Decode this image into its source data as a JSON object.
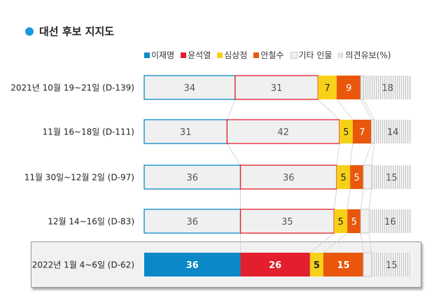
{
  "title": "대선 후보 지지도",
  "legend": {
    "items": [
      "이재명",
      "윤석열",
      "심상정",
      "안철수",
      "기타 인물",
      "의견유보"
    ],
    "unit": "(%)"
  },
  "colors": {
    "이재명": "#0a88c8",
    "윤석열": "#e31e2d",
    "심상정": "#f7d117",
    "안철수": "#e8570c",
    "기타 인물": "#f0f0f0",
    "의견유보": "#cfcfcf"
  },
  "chart_data": {
    "type": "bar",
    "orientation": "horizontal-stacked",
    "categories": [
      "2021년 10월 19~21일 (D-139)",
      "11월 16~18일 (D-111)",
      "11월 30일~12월 2일 (D-97)",
      "12월 14~16일 (D-83)",
      "2022년 1월 4~6일 (D-62)"
    ],
    "series": [
      {
        "name": "이재명",
        "values": [
          34,
          31,
          36,
          36,
          36
        ]
      },
      {
        "name": "윤석열",
        "values": [
          31,
          42,
          36,
          35,
          26
        ]
      },
      {
        "name": "심상정",
        "values": [
          7,
          5,
          5,
          5,
          5
        ]
      },
      {
        "name": "안철수",
        "values": [
          9,
          7,
          5,
          5,
          15
        ]
      },
      {
        "name": "기타 인물",
        "values": [
          1,
          1,
          3,
          3,
          3
        ],
        "labeled": false
      },
      {
        "name": "의견유보",
        "values": [
          18,
          14,
          15,
          16,
          15
        ]
      }
    ],
    "highlight": "2022년 1월 4~6일 (D-62)"
  }
}
